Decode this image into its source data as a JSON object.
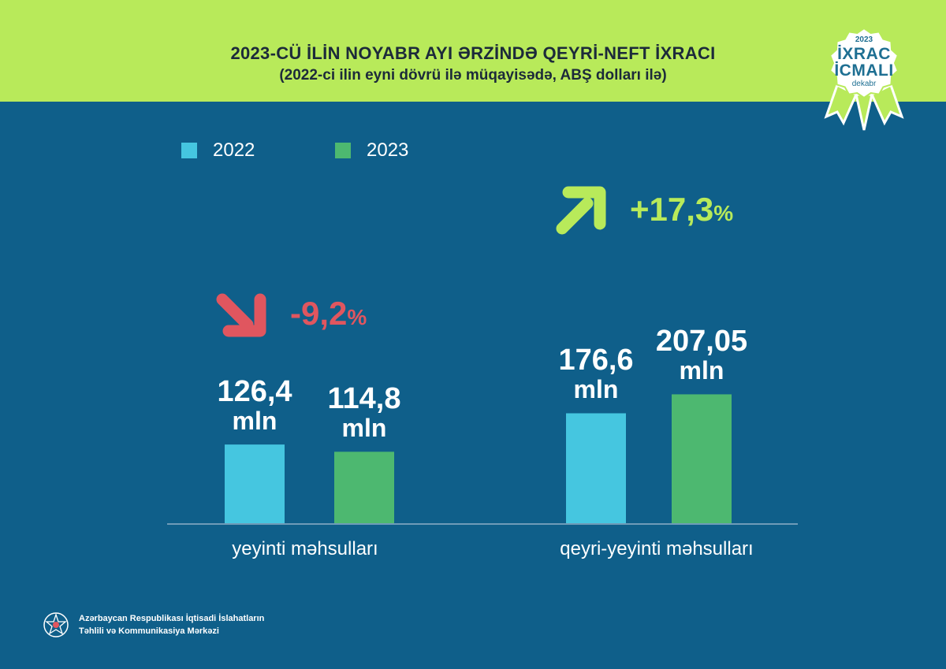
{
  "header": {
    "title": "2023-CÜ İLİN NOYABR AYI ƏRZİNDƏ QEYRİ-NEFT İXRACI",
    "subtitle": "(2022-ci ilin eyni dövrü ilə müqayisədə, ABŞ dolları ilə)"
  },
  "badge": {
    "year": "2023",
    "line1": "İXRAC",
    "line2": "İCMALI",
    "month": "dekabr"
  },
  "colors": {
    "background": "#0f5f8a",
    "header": "#b8ea5a",
    "series_2022": "#45c6e0",
    "series_2023": "#4db870",
    "decrease": "#e0565f",
    "increase": "#b8ea5a"
  },
  "chart_data": {
    "type": "bar",
    "categories": [
      "yeyinti məhsulları",
      "qeyri-yeyinti məhsulları"
    ],
    "series": [
      {
        "name": "2022",
        "values": [
          126.4,
          176.6
        ],
        "labels": [
          "126,4",
          "176,6"
        ]
      },
      {
        "name": "2023",
        "values": [
          114.8,
          207.05
        ],
        "labels": [
          "114,8",
          "207,05"
        ]
      }
    ],
    "unit_label": "mln",
    "changes": [
      {
        "direction": "down",
        "value": "-9,2",
        "pct": "%"
      },
      {
        "direction": "up",
        "value": "+17,3",
        "pct": "%"
      }
    ],
    "legend": {
      "placement": "top-left"
    },
    "grid": false
  },
  "footer": {
    "line1": "Azərbaycan Respublikası İqtisadi İslahatların",
    "line2": "Təhlili və Kommunikasiya Mərkəzi"
  }
}
